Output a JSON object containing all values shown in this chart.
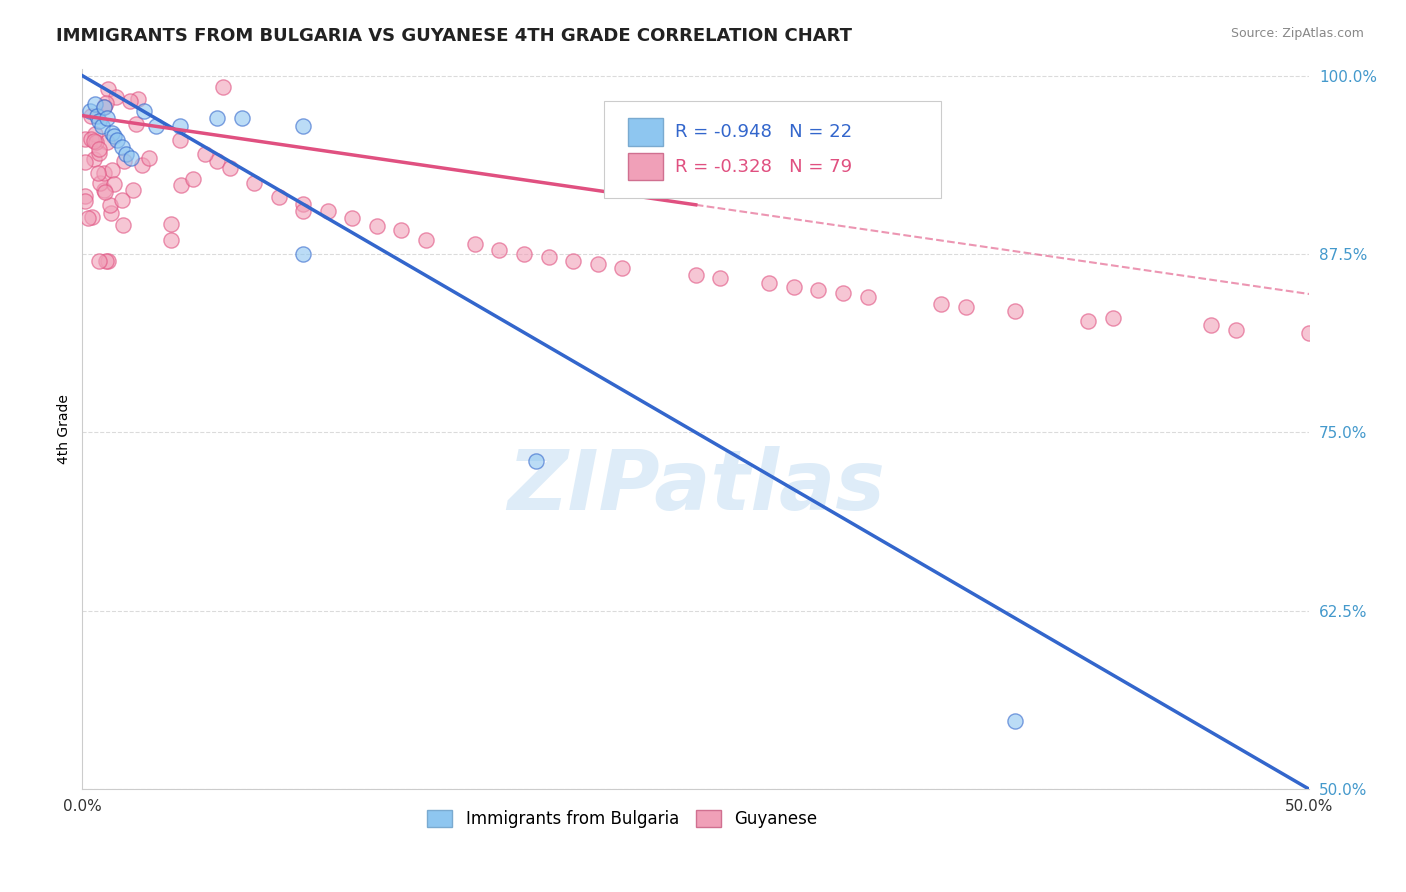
{
  "title": "IMMIGRANTS FROM BULGARIA VS GUYANESE 4TH GRADE CORRELATION CHART",
  "source_text": "Source: ZipAtlas.com",
  "ylabel": "4th Grade",
  "xlim": [
    0.0,
    0.5
  ],
  "ylim": [
    0.5,
    1.005
  ],
  "xticks": [
    0.0,
    0.1,
    0.2,
    0.3,
    0.4,
    0.5
  ],
  "xticklabels": [
    "0.0%",
    "",
    "",
    "",
    "",
    "50.0%"
  ],
  "yticks": [
    0.5,
    0.625,
    0.75,
    0.875,
    1.0
  ],
  "yticklabels": [
    "50.0%",
    "62.5%",
    "75.0%",
    "87.5%",
    "100.0%"
  ],
  "watermark": "ZIPatlas",
  "legend_r1": "R = -0.948",
  "legend_n1": "N = 22",
  "legend_r2": "R = -0.328",
  "legend_n2": "N = 79",
  "series1_label": "Immigrants from Bulgaria",
  "series2_label": "Guyanese",
  "color1": "#8EC6F0",
  "color2": "#F0A0B8",
  "trendline1_color": "#3366CC",
  "trendline2_color": "#E05080",
  "background_color": "#ffffff",
  "grid_color": "#cccccc",
  "title_fontsize": 13,
  "axis_label_fontsize": 10,
  "tick_fontsize": 11,
  "legend_fontsize": 13,
  "watermark_fontsize": 60,
  "watermark_color": "#C8E0F4",
  "watermark_alpha": 0.6
}
